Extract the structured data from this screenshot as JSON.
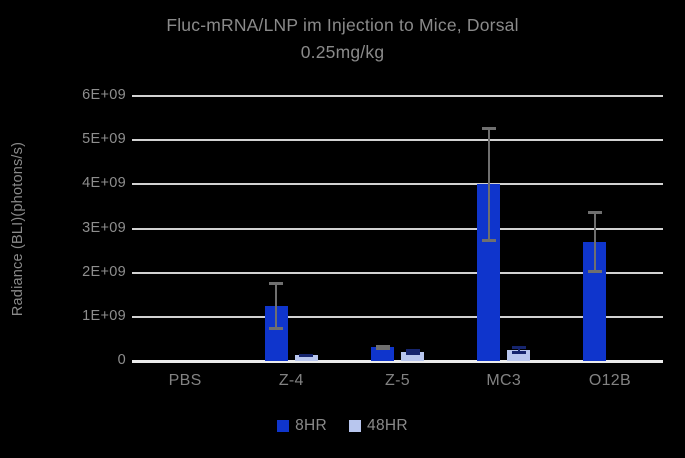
{
  "chart_data": {
    "type": "bar",
    "title_line1": "Fluc-mRNA/LNP im Injection to Mice, Dorsal",
    "title_line2": "0.25mg/kg",
    "ylabel": "Radiance (BLI)(photons/s)",
    "xlabel": "",
    "categories": [
      "PBS",
      "Z-4",
      "Z-5",
      "MC3",
      "O12B"
    ],
    "ylim": [
      0,
      6000000000.0
    ],
    "grid": "horizontal",
    "legend_position": "bottom",
    "background_color": "#000000",
    "text_color": "#8a8a8a",
    "gridline_color": "#d2d2d2",
    "y_ticks": [
      {
        "value": 0,
        "label": "0"
      },
      {
        "value": 1000000000.0,
        "label": "1E+09"
      },
      {
        "value": 2000000000.0,
        "label": "2E+09"
      },
      {
        "value": 3000000000.0,
        "label": "3E+09"
      },
      {
        "value": 4000000000.0,
        "label": "4E+09"
      },
      {
        "value": 5000000000.0,
        "label": "5E+09"
      },
      {
        "value": 6000000000.0,
        "label": "6E+09"
      }
    ],
    "series": [
      {
        "name": "8HR",
        "color": "#0f35cc",
        "error_color": "#6f6f6f",
        "values": [
          0,
          1250000000.0,
          310000000.0,
          4000000000.0,
          2700000000.0
        ],
        "errors": [
          0,
          550000000.0,
          50000000.0,
          1300000000.0,
          700000000.0
        ]
      },
      {
        "name": "48HR",
        "color": "#b8c6ee",
        "error_color": "#16256e",
        "values": [
          0,
          130000000.0,
          210000000.0,
          250000000.0,
          0
        ],
        "errors": [
          0,
          40000000.0,
          70000000.0,
          80000000.0,
          0
        ]
      }
    ]
  }
}
